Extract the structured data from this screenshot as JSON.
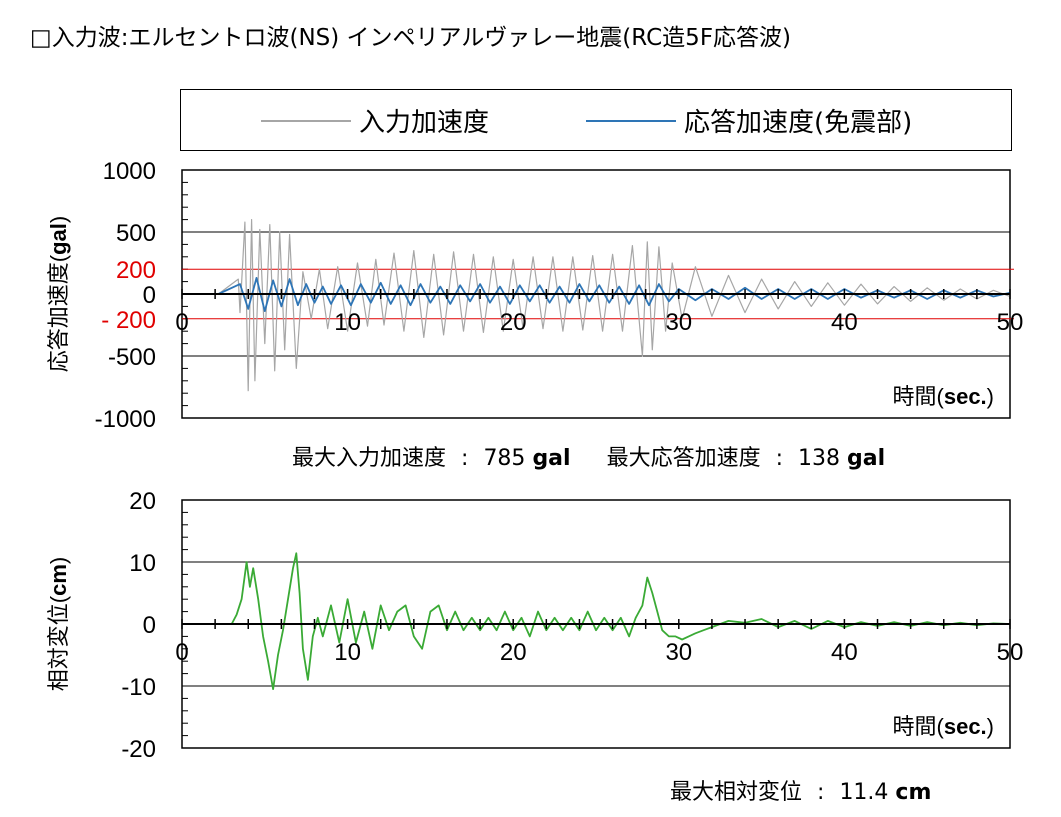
{
  "title": "□入力波:エルセントロ波(NS) インペリアルヴァレー地震(RC造5F応答波)",
  "legend": {
    "input_label": "入力加速度",
    "response_label": "応答加速度(免震部)"
  },
  "colors": {
    "input": "#a6a6a6",
    "response": "#2e75b6",
    "displacement": "#3aaa35",
    "threshold": "#e00000"
  },
  "stats": {
    "max_input_label": "最大入力加速度",
    "max_input_value": "785",
    "max_input_unit": "gal",
    "max_response_label": "最大応答加速度",
    "max_response_value": "138",
    "max_response_unit": "gal",
    "max_disp_label": "最大相対変位",
    "max_disp_value": "11.4",
    "max_disp_unit": "cm",
    "separator": ":"
  },
  "chart_data": [
    {
      "type": "line",
      "ylabel_main": "応答加速度(",
      "ylabel_unit": "gal",
      "ylabel_close": ")",
      "xlabel_main": "時間(",
      "xlabel_unit": "sec.",
      "xlabel_close": ")",
      "xlim": [
        0,
        50
      ],
      "ylim": [
        -1000,
        1000
      ],
      "xticks": [
        "0",
        "10",
        "20",
        "30",
        "40",
        "50"
      ],
      "yticks": [
        {
          "label": "1000",
          "value": 1000
        },
        {
          "label": "500",
          "value": 500
        },
        {
          "label": "0",
          "value": 0
        },
        {
          "label": "-500",
          "value": -500
        },
        {
          "label": "-1000",
          "value": -1000
        }
      ],
      "threshold_ticks": [
        {
          "label": "200",
          "value": 200
        },
        {
          "label": "- 200",
          "value": -200
        }
      ],
      "series": [
        {
          "name": "入力加速度",
          "x": [
            2.2,
            3.4,
            3.5,
            3.8,
            4.0,
            4.2,
            4.4,
            4.7,
            5.0,
            5.3,
            5.6,
            5.9,
            6.2,
            6.5,
            6.9,
            7.3,
            7.8,
            8.3,
            8.8,
            9.4,
            10.0,
            10.6,
            11.2,
            11.7,
            12.2,
            12.8,
            13.4,
            14.0,
            14.6,
            15.2,
            15.8,
            16.4,
            17.0,
            17.6,
            18.2,
            18.8,
            19.4,
            20.0,
            20.6,
            21.2,
            21.8,
            22.4,
            23.0,
            23.6,
            24.2,
            24.8,
            25.4,
            26.0,
            26.6,
            27.2,
            27.8,
            28.1,
            28.4,
            28.8,
            29.2,
            29.6,
            30.2,
            31.0,
            32.0,
            33.0,
            34.0,
            35.0,
            36.0,
            37.0,
            38.0,
            39.0,
            40.0,
            41.0,
            42.0,
            43.0,
            44.0,
            45.0,
            46.0,
            47.0,
            48.0,
            49.0,
            50.0
          ],
          "y": [
            0,
            120,
            -150,
            580,
            -780,
            600,
            -700,
            520,
            -400,
            560,
            -620,
            500,
            -450,
            480,
            -600,
            180,
            -200,
            200,
            -280,
            220,
            -300,
            250,
            -260,
            280,
            -250,
            330,
            -300,
            350,
            -350,
            320,
            -330,
            340,
            -300,
            320,
            -310,
            300,
            -300,
            280,
            -280,
            300,
            -280,
            300,
            -300,
            300,
            -290,
            310,
            -300,
            320,
            -300,
            390,
            -500,
            420,
            -450,
            380,
            -300,
            250,
            -200,
            220,
            -180,
            150,
            -150,
            120,
            -120,
            100,
            -100,
            90,
            -90,
            80,
            -80,
            60,
            -60,
            50,
            -50,
            40,
            -40,
            30,
            -20
          ]
        },
        {
          "name": "応答加速度(免震部)",
          "x": [
            2.2,
            3.5,
            4.0,
            4.5,
            5.0,
            5.5,
            6.0,
            6.5,
            7.0,
            7.5,
            8.0,
            8.5,
            9.0,
            9.6,
            10.2,
            10.8,
            11.4,
            12.0,
            12.6,
            13.2,
            13.8,
            14.4,
            15.0,
            15.6,
            16.2,
            16.8,
            17.4,
            18.0,
            18.6,
            19.2,
            19.8,
            20.4,
            21.0,
            21.6,
            22.2,
            22.8,
            23.4,
            24.0,
            24.6,
            25.2,
            25.8,
            26.4,
            27.0,
            27.6,
            28.2,
            28.8,
            29.4,
            30.0,
            31.0,
            32.0,
            33.0,
            34.0,
            35.0,
            36.0,
            37.0,
            38.0,
            39.0,
            40.0,
            41.0,
            42.0,
            43.0,
            44.0,
            45.0,
            46.0,
            47.0,
            48.0,
            49.0,
            50.0
          ],
          "y": [
            0,
            80,
            -120,
            130,
            -138,
            110,
            -100,
            120,
            -90,
            80,
            -70,
            60,
            -80,
            70,
            -90,
            80,
            -70,
            90,
            -80,
            70,
            -90,
            80,
            -70,
            60,
            -80,
            70,
            -60,
            80,
            -70,
            60,
            -80,
            70,
            -60,
            70,
            -70,
            60,
            -70,
            80,
            -60,
            70,
            -70,
            60,
            -80,
            70,
            -90,
            80,
            -60,
            40,
            -50,
            40,
            -40,
            50,
            -40,
            40,
            -40,
            40,
            -40,
            40,
            -30,
            30,
            -30,
            30,
            -40,
            30,
            -30,
            30,
            -20,
            10
          ]
        }
      ]
    },
    {
      "type": "line",
      "ylabel_main": "相対変位(",
      "ylabel_unit": "cm",
      "ylabel_close": ")",
      "xlabel_main": "時間(",
      "xlabel_unit": "sec.",
      "xlabel_close": ")",
      "xlim": [
        0,
        50
      ],
      "ylim": [
        -20,
        20
      ],
      "xticks": [
        "0",
        "10",
        "20",
        "30",
        "40",
        "50"
      ],
      "yticks": [
        {
          "label": "20",
          "value": 20
        },
        {
          "label": "10",
          "value": 10
        },
        {
          "label": "0",
          "value": 0
        },
        {
          "label": "-10",
          "value": -10
        },
        {
          "label": "-20",
          "value": -20
        }
      ],
      "series": [
        {
          "name": "相対変位",
          "x": [
            0,
            3.0,
            3.3,
            3.6,
            3.9,
            4.1,
            4.3,
            4.6,
            4.9,
            5.2,
            5.5,
            5.8,
            6.1,
            6.4,
            6.7,
            6.9,
            7.1,
            7.3,
            7.6,
            7.9,
            8.2,
            8.5,
            9.0,
            9.5,
            10.0,
            10.5,
            11.0,
            11.5,
            12.0,
            12.5,
            13.0,
            13.5,
            14.0,
            14.5,
            15.0,
            15.5,
            16.0,
            16.5,
            17.0,
            17.5,
            18.0,
            18.5,
            19.0,
            19.5,
            20.0,
            20.5,
            21.0,
            21.5,
            22.0,
            22.5,
            23.0,
            23.5,
            24.0,
            24.5,
            25.0,
            25.5,
            26.0,
            26.5,
            27.0,
            27.4,
            27.8,
            28.1,
            28.4,
            28.7,
            29.0,
            29.4,
            29.8,
            30.2,
            30.6,
            31.0,
            31.5,
            32.0,
            33.0,
            34.0,
            35.0,
            36.0,
            37.0,
            38.0,
            39.0,
            40.0,
            41.0,
            42.0,
            43.0,
            44.0,
            45.0,
            46.0,
            47.0,
            48.0,
            49.0,
            50.0
          ],
          "y": [
            0,
            0,
            1.5,
            4,
            10,
            6,
            9,
            4,
            -2,
            -6,
            -10.5,
            -5,
            -1,
            4,
            9,
            11.4,
            5,
            -4,
            -9,
            -2,
            1,
            -2,
            3,
            -3,
            4,
            -3,
            2,
            -4,
            3,
            -1,
            2,
            3,
            -2,
            -4,
            2,
            3,
            -1,
            2,
            -1,
            1,
            -1,
            1,
            -1,
            2,
            -1,
            1,
            -2,
            2,
            -1,
            1,
            -1,
            1,
            -1,
            2,
            -1,
            1,
            -1,
            1,
            -2,
            1,
            3,
            7.5,
            5,
            2,
            -1,
            -2,
            -2,
            -2.5,
            -2,
            -1.5,
            -1,
            -0.5,
            0.5,
            0.2,
            0.8,
            -0.5,
            0.5,
            -0.8,
            0.5,
            -0.5,
            0.3,
            -0.3,
            0.3,
            -0.3,
            0.3,
            -0.2,
            0.2,
            -0.2,
            0.1,
            0
          ]
        }
      ]
    }
  ]
}
